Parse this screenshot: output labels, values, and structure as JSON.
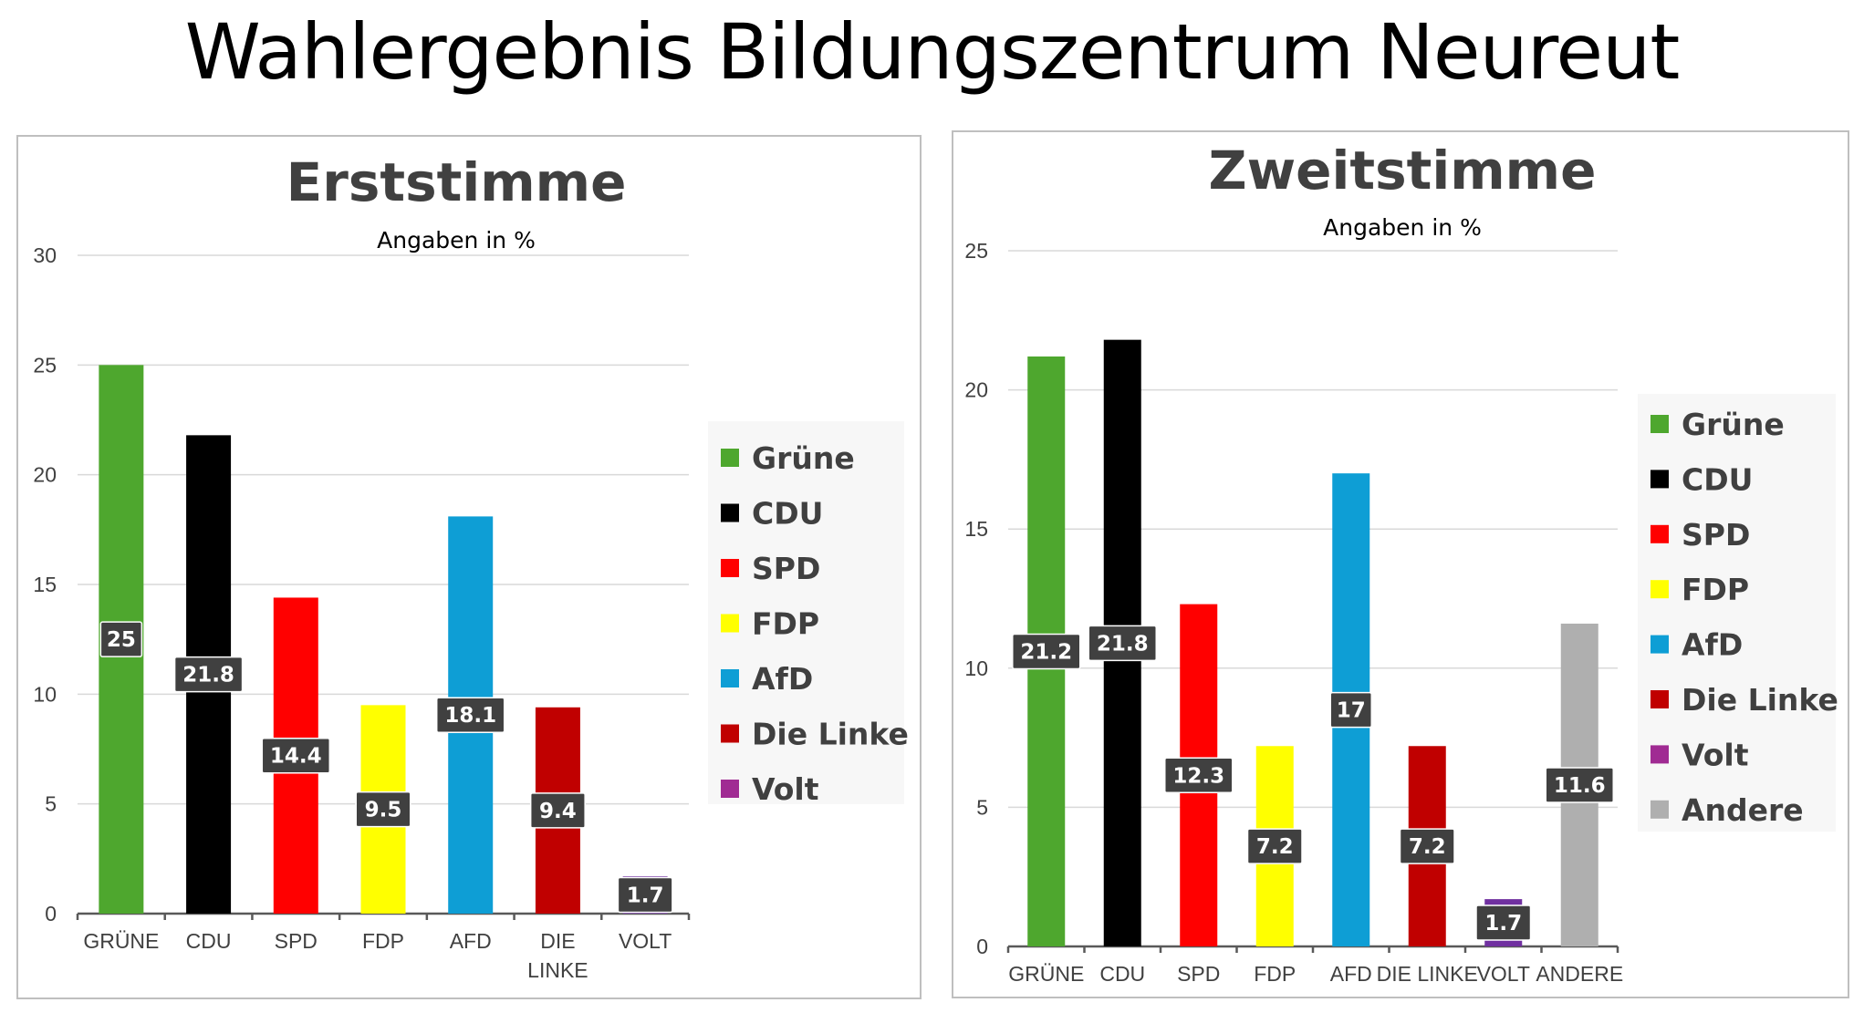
{
  "page_title": "Wahlergebnis Bildungszentrum Neureut",
  "chart_data": [
    {
      "type": "bar",
      "title": "Erststimme",
      "subtitle": "Angaben in %",
      "ylim": [
        0,
        30
      ],
      "yticks": [
        0,
        5,
        10,
        15,
        20,
        25,
        30
      ],
      "categories": [
        "GRÜNE",
        "CDU",
        "SPD",
        "FDP",
        "AFD",
        "DIE LINKE",
        "VOLT"
      ],
      "values": [
        25,
        21.8,
        14.4,
        9.5,
        18.1,
        9.4,
        1.7
      ],
      "value_labels": [
        "25",
        "21.8",
        "14.4",
        "9.5",
        "18.1",
        "9.4",
        "1.7"
      ],
      "colors": [
        "#4ea72e",
        "#000000",
        "#ff0000",
        "#ffff00",
        "#0e9ed5",
        "#c00000",
        "#7030a0"
      ],
      "legend": [
        {
          "label": "Grüne",
          "color": "#4ea72e"
        },
        {
          "label": "CDU",
          "color": "#000000"
        },
        {
          "label": "SPD",
          "color": "#ff0000"
        },
        {
          "label": "FDP",
          "color": "#ffff00"
        },
        {
          "label": "AfD",
          "color": "#0e9ed5"
        },
        {
          "label": "Die Linke",
          "color": "#c00000"
        },
        {
          "label": "Volt",
          "color": "#a02b93"
        }
      ],
      "xlabel": "",
      "ylabel": ""
    },
    {
      "type": "bar",
      "title": "Zweitstimme",
      "subtitle": "Angaben in %",
      "ylim": [
        0,
        25
      ],
      "yticks": [
        0,
        5,
        10,
        15,
        20,
        25
      ],
      "categories": [
        "GRÜNE",
        "CDU",
        "SPD",
        "FDP",
        "AFD",
        "DIE LINKE",
        "VOLT",
        "ANDERE"
      ],
      "values": [
        21.2,
        21.8,
        12.3,
        7.2,
        17,
        7.2,
        1.7,
        11.6
      ],
      "value_labels": [
        "21.2",
        "21.8",
        "12.3",
        "7.2",
        "17",
        "7.2",
        "1.7",
        "11.6"
      ],
      "colors": [
        "#4ea72e",
        "#000000",
        "#ff0000",
        "#ffff00",
        "#0e9ed5",
        "#c00000",
        "#7030a0",
        "#afafaf"
      ],
      "legend": [
        {
          "label": "Grüne",
          "color": "#4ea72e"
        },
        {
          "label": "CDU",
          "color": "#000000"
        },
        {
          "label": "SPD",
          "color": "#ff0000"
        },
        {
          "label": "FDP",
          "color": "#ffff00"
        },
        {
          "label": "AfD",
          "color": "#0e9ed5"
        },
        {
          "label": "Die Linke",
          "color": "#c00000"
        },
        {
          "label": "Volt",
          "color": "#a02b93"
        },
        {
          "label": "Andere",
          "color": "#afafaf"
        }
      ],
      "xlabel": "",
      "ylabel": ""
    }
  ]
}
